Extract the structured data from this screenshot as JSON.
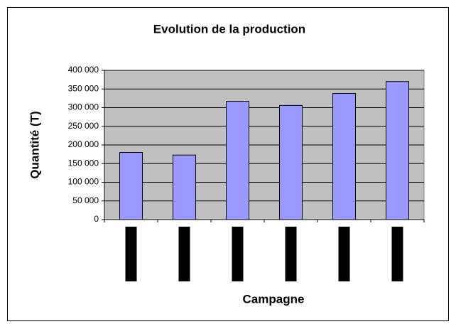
{
  "chart_data": {
    "type": "bar",
    "title": "Evolution de la production",
    "x_label": "Campagne",
    "y_label": "Quantité (T)",
    "categories": [
      null,
      null,
      null,
      null,
      null,
      null
    ],
    "values": [
      180000,
      173000,
      317000,
      306000,
      338000,
      370000
    ],
    "color": "#9999ff",
    "ylim": [
      0,
      400000
    ],
    "yticks": [
      0,
      {
        "value": 50000,
        "label": "50 000"
      },
      {
        "value": 100000,
        "label": "100 000"
      },
      {
        "value": 150000,
        "label": "150 000"
      },
      {
        "value": 200000,
        "label": "200 000"
      },
      {
        "value": 250000,
        "label": "250 000"
      },
      {
        "value": 300000,
        "label": "300 000"
      },
      {
        "value": 350000,
        "label": "350 000"
      },
      {
        "value": 400000,
        "label": "400 000"
      }
    ],
    "grid": true
  }
}
